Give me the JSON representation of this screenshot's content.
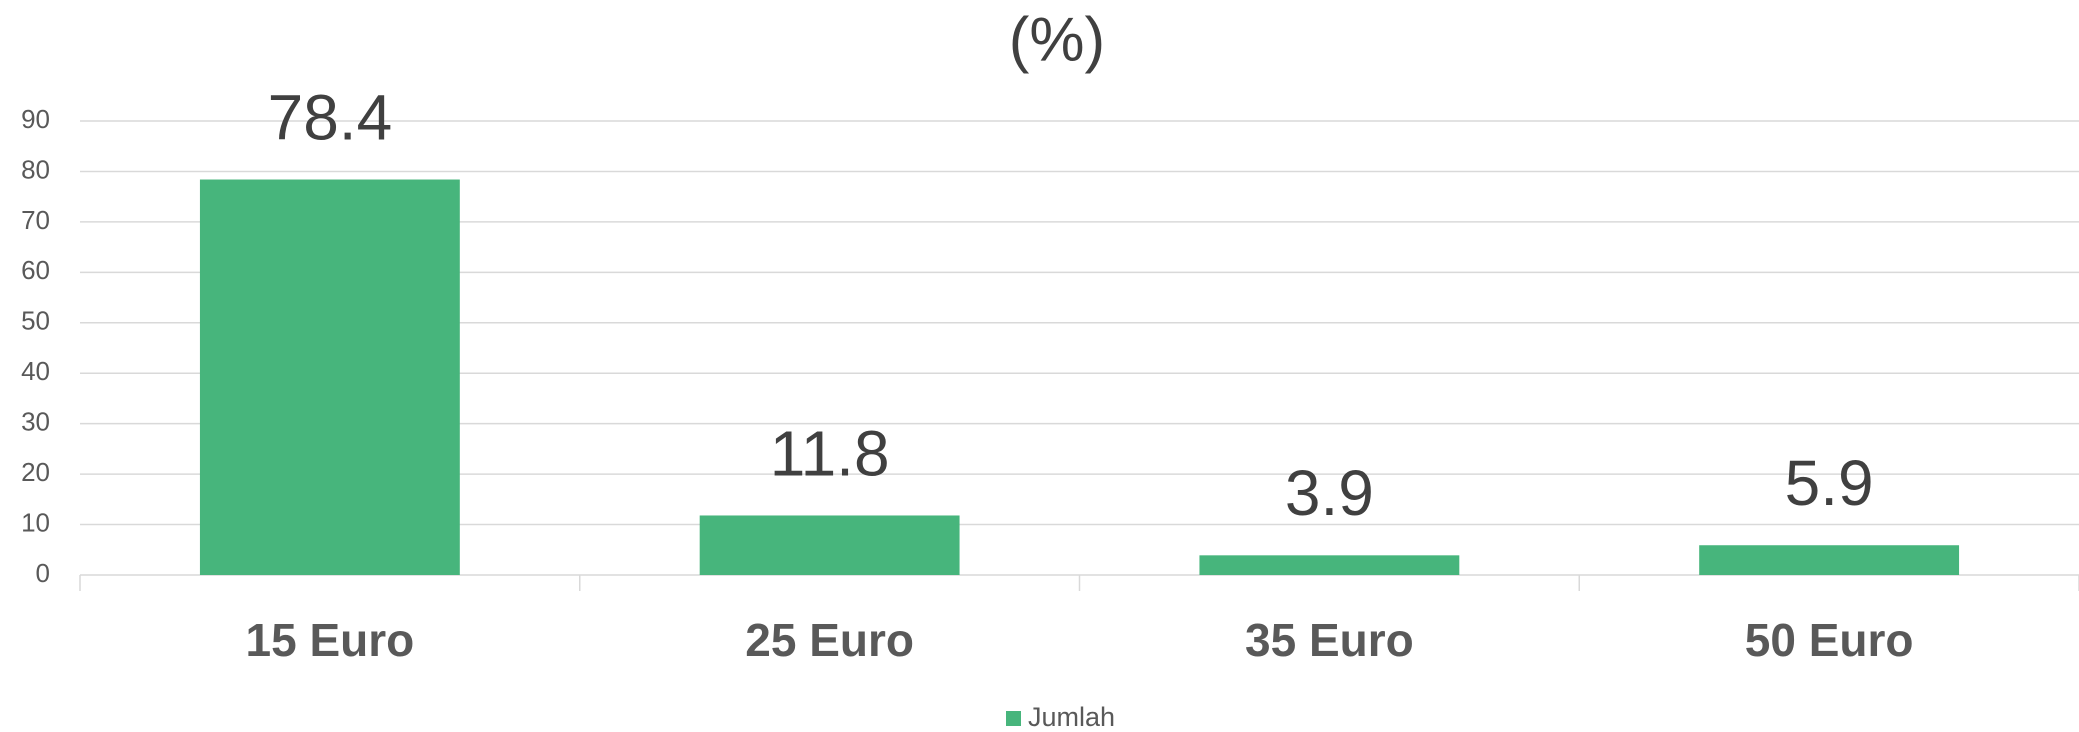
{
  "chart_data": {
    "type": "bar",
    "title": "(%)",
    "categories": [
      "15 Euro",
      "25 Euro",
      "35 Euro",
      "50 Euro"
    ],
    "series": [
      {
        "name": "Jumlah",
        "color": "#47b57c",
        "values": [
          78.4,
          11.8,
          3.9,
          5.9
        ]
      }
    ],
    "ylim": [
      0,
      90
    ],
    "yticks": [
      0,
      10,
      20,
      30,
      40,
      50,
      60,
      70,
      80,
      90
    ],
    "grid": true,
    "legend": "bottom"
  }
}
